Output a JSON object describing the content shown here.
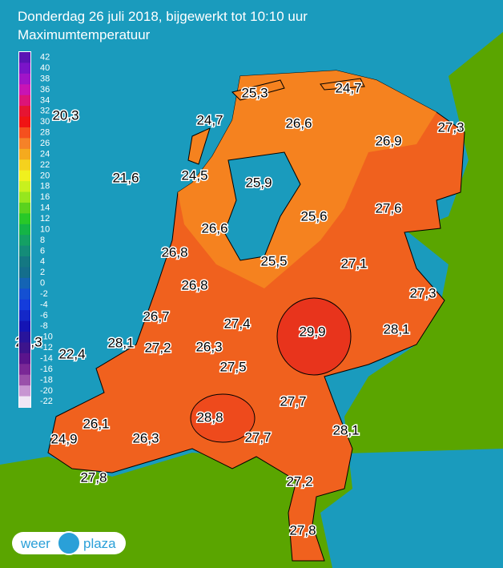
{
  "header": {
    "title": "Donderdag 26 juli 2018, bijgewerkt tot 10:10 uur",
    "subtitle": "Maximumtemperatuur"
  },
  "legend": {
    "ticks": [
      42,
      40,
      38,
      36,
      34,
      32,
      30,
      28,
      26,
      24,
      22,
      20,
      18,
      16,
      14,
      12,
      10,
      8,
      6,
      4,
      2,
      0,
      -2,
      -4,
      -6,
      -8,
      -10,
      -12,
      -14,
      -16,
      -18,
      -20,
      -22
    ],
    "colors": [
      "#5a14b4",
      "#7a14c8",
      "#a014c8",
      "#c814b4",
      "#dc1478",
      "#e61432",
      "#f01414",
      "#f5501e",
      "#f58228",
      "#f5aa1e",
      "#f5d21e",
      "#f0f01e",
      "#c8f01e",
      "#96e61e",
      "#5ad21e",
      "#28c828",
      "#14b446",
      "#14a064",
      "#148c78",
      "#147882",
      "#146e8c",
      "#1464b4",
      "#1450d2",
      "#143cdc",
      "#1428c8",
      "#1414b4",
      "#28149b",
      "#3c148c",
      "#5a148c",
      "#7a2896",
      "#9a50aa",
      "#c896d2",
      "#f0e6f5"
    ]
  },
  "stations": [
    "20,3",
    "25,3",
    "24,7",
    "24,7",
    "26,6",
    "27,3",
    "26,9",
    "21,6",
    "24,5",
    "25,9",
    "25,6",
    "27,6",
    "26,6",
    "26,8",
    "25,5",
    "27,1",
    "26,8",
    "27,3",
    "26,7",
    "27,4",
    "29,9",
    "28,1",
    "28,3",
    "28,1",
    "27,2",
    "26,3",
    "22,4",
    "27,5",
    "27,7",
    "28,8",
    "26,1",
    "28,1",
    "24,9",
    "26,3",
    "27,7",
    "27,8",
    "27,2",
    "27,8"
  ],
  "logo": {
    "left": "weer",
    "right": "plaza"
  }
}
